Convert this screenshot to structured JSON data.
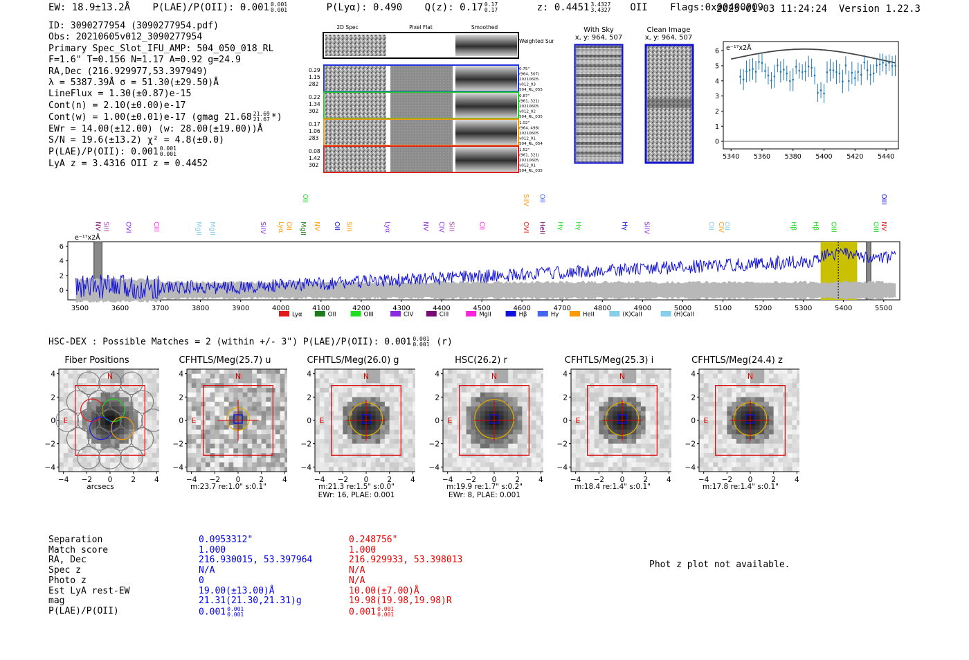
{
  "header": {
    "ew": "EW: 18.9±13.2Å",
    "plae": "P(LAE)/P(OII): 0.001",
    "plae_hi": "0.001",
    "plae_lo": "0.001",
    "plya": "P(Lyα): 0.490",
    "qz": "Q(z): 0.17",
    "qz_hi": "0.17",
    "qz_lo": "0.17",
    "z": "z: 0.4451",
    "z_hi": "3.4327",
    "z_lo": "3.4327",
    "z_line": "OII",
    "flags": "Flags:0x00400009",
    "timestamp": "2025-01-03 11:24:24",
    "version": "Version 1.22.3"
  },
  "detection": {
    "id": "ID: 3090277954 (3090277954.pdf)",
    "obs": "Obs: 20210605v012_3090277954",
    "primary": "Primary Spec_Slot_IFU_AMP: 504_050_018_RL",
    "fiber": "F=1.6\"  T=0.156  N=1.17  A=0.92  g=24.9",
    "radec": "RA,Dec (216.929977,53.397949)",
    "lambda": "λ = 5387.39Å   σ = 51.30(±29.50)Å",
    "lineflux": "LineFlux = 1.30(±0.87)e-15",
    "contn": "Cont(n) = 2.10(±0.00)e-17",
    "contw": "Cont(w) = 1.00(±0.01)e-17 (gmag 21.68",
    "contw_hi": "21.69",
    "contw_lo": "21.67",
    "contw_end": "*)",
    "ewr": "EWr = 14.00(±12.00) (w: 28.00(±19.00))Å",
    "sn": "S/N = 19.6(±13.2)  χ² = 4.8(±0.0)",
    "plae": "P(LAE)/P(OII): 0.001",
    "plae_hi": "0.001",
    "plae_lo": "0.001",
    "lyaz": "LyA z = 3.4316   OII z = 0.4452"
  },
  "panels": {
    "spec2d_headers": [
      "2D Spec",
      "Pixel Flat",
      "Smoothed"
    ],
    "weighted_sum": "Weighted Sum",
    "rows": [
      {
        "left": [
          "0.29",
          "1.15",
          "282"
        ],
        "right": [
          "0.75\"",
          "(964, 507)",
          "20210605",
          "v012_03",
          "504_RL_055"
        ],
        "color": "#2233dd"
      },
      {
        "left": [
          "0.22",
          "1.34",
          "302"
        ],
        "right": [
          "0.87\"",
          "(961, 321)",
          "20210605",
          "v012_02",
          "504_RL_035"
        ],
        "color": "#22cc33"
      },
      {
        "left": [
          "0.17",
          "1.06",
          "283"
        ],
        "right": [
          "1.02\"",
          "(964, 498)",
          "20210605",
          "v012_01",
          "504_RL_054"
        ],
        "color": "#ee9911"
      },
      {
        "left": [
          "0.08",
          "1.42",
          "302"
        ],
        "right": [
          "1.52\"",
          "(961, 321)",
          "20210605",
          "v012_01",
          "504_RL_035"
        ],
        "color": "#dd2222"
      }
    ],
    "with_sky": "With Sky",
    "with_sky_xy": "x, y: 964, 507",
    "clean": "Clean Image",
    "clean_xy": "x, y: 964, 507"
  },
  "zoom_plot": {
    "unit": "e⁻¹⁷x2Å",
    "yticks": [
      "0",
      "1",
      "2",
      "3",
      "4",
      "5",
      "6"
    ],
    "xticks": [
      "5340",
      "5360",
      "5380",
      "5400",
      "5420",
      "5440"
    ]
  },
  "full_spectrum": {
    "unit": "e⁻¹⁷x2Å",
    "yticks": [
      "0",
      "2",
      "4",
      "6"
    ],
    "xticks": [
      "3500",
      "3600",
      "3700",
      "3800",
      "3900",
      "4000",
      "4100",
      "4200",
      "4300",
      "4400",
      "4500",
      "4600",
      "4700",
      "4800",
      "4900",
      "5000",
      "5100",
      "5200",
      "5300",
      "5400",
      "5500"
    ],
    "legend": [
      {
        "label": "Lyα",
        "color": "#e31a1c"
      },
      {
        "label": "OII",
        "color": "#1b7a1b"
      },
      {
        "label": "OIII",
        "color": "#22dd22"
      },
      {
        "label": "CIV",
        "color": "#8a2be2"
      },
      {
        "label": "CIII",
        "color": "#7a0a7a"
      },
      {
        "label": "MgII",
        "color": "#ff22dd"
      },
      {
        "label": "Hβ",
        "color": "#1111dd"
      },
      {
        "label": "Hγ",
        "color": "#4466ee"
      },
      {
        "label": "HeII",
        "color": "#ff9900"
      },
      {
        "label": "(K)CaII",
        "color": "#87ceeb"
      },
      {
        "label": "(H)CaII",
        "color": "#87ceeb"
      }
    ],
    "line_labels": [
      {
        "t": "NV",
        "w": 3535,
        "c": "#7a0a7a",
        "row": 1
      },
      {
        "t": "SiII",
        "w": 3555,
        "c": "#aa44aa",
        "row": 1
      },
      {
        "t": "OVI",
        "w": 3610,
        "c": "#8a2be2",
        "row": 1
      },
      {
        "t": "CIII",
        "w": 3680,
        "c": "#ff22dd",
        "row": 1
      },
      {
        "t": "MgII",
        "w": 3785,
        "c": "#87ceeb",
        "row": 1
      },
      {
        "t": "MgII",
        "w": 3820,
        "c": "#87ceeb",
        "row": 1
      },
      {
        "t": "SiIV",
        "w": 3945,
        "c": "#8a2be2",
        "row": 1
      },
      {
        "t": "Lyα",
        "w": 3990,
        "c": "#ff9900",
        "row": 1
      },
      {
        "t": "OII",
        "w": 4010,
        "c": "#ff9900",
        "row": 1
      },
      {
        "t": "MgII",
        "w": 4045,
        "c": "#1b7a1b",
        "row": 1
      },
      {
        "t": "OII",
        "w": 4050,
        "c": "#22dd22",
        "row": 0
      },
      {
        "t": "NV",
        "w": 4080,
        "c": "#ff9900",
        "row": 1
      },
      {
        "t": "OII",
        "w": 4130,
        "c": "#1111dd",
        "row": 1
      },
      {
        "t": "SiII",
        "w": 4160,
        "c": "#ff9900",
        "row": 1
      },
      {
        "t": "Lyα",
        "w": 4255,
        "c": "#8a2be2",
        "row": 1
      },
      {
        "t": "NV",
        "w": 4350,
        "c": "#8a2be2",
        "row": 1
      },
      {
        "t": "CIV",
        "w": 4390,
        "c": "#8a2be2",
        "row": 1
      },
      {
        "t": "SiII",
        "w": 4415,
        "c": "#aa44aa",
        "row": 1
      },
      {
        "t": "CII",
        "w": 4490,
        "c": "#ff22dd",
        "row": 1
      },
      {
        "t": "OVI",
        "w": 4600,
        "c": "#e31a1c",
        "row": 1
      },
      {
        "t": "SiIV",
        "w": 4600,
        "c": "#ff9900",
        "row": 0
      },
      {
        "t": "OII",
        "w": 4640,
        "c": "#4466ee",
        "row": 0
      },
      {
        "t": "HeII",
        "w": 4640,
        "c": "#7a0a7a",
        "row": 1
      },
      {
        "t": "Hγ",
        "w": 4685,
        "c": "#22dd22",
        "row": 1
      },
      {
        "t": "Hγ",
        "w": 4730,
        "c": "#22dd22",
        "row": 1
      },
      {
        "t": "Hγ",
        "w": 4845,
        "c": "#1111dd",
        "row": 1
      },
      {
        "t": "SiIV",
        "w": 4900,
        "c": "#8a2be2",
        "row": 1
      },
      {
        "t": "OII",
        "w": 5060,
        "c": "#87ceeb",
        "row": 1
      },
      {
        "t": "CIV",
        "w": 5085,
        "c": "#ff9900",
        "row": 1
      },
      {
        "t": "OII",
        "w": 5100,
        "c": "#87ceeb",
        "row": 1
      },
      {
        "t": "Hβ",
        "w": 5265,
        "c": "#22dd22",
        "row": 1
      },
      {
        "t": "Hβ",
        "w": 5320,
        "c": "#22dd22",
        "row": 1
      },
      {
        "t": "OIII",
        "w": 5365,
        "c": "#22dd22",
        "row": 1
      },
      {
        "t": "OIII",
        "w": 5470,
        "c": "#22dd22",
        "row": 1
      },
      {
        "t": "OIII",
        "w": 5490,
        "c": "#1111dd",
        "row": 0
      },
      {
        "t": "NV",
        "w": 5490,
        "c": "#e31a1c",
        "row": 1
      }
    ]
  },
  "hsc": {
    "line": "HSC-DEX : Possible Matches = 2 (within +/- 3\")  P(LAE)/P(OII): 0.001",
    "hi": "0.001",
    "lo": "0.001",
    "band": "(r)"
  },
  "cutouts": [
    {
      "title": "Fiber Positions",
      "caption1": "arcsecs",
      "caption2": ""
    },
    {
      "title": "CFHTLS/Meg(25.7) u",
      "caption1": "m:23.7  re:1.0\"  s:0.1\"",
      "caption2": ""
    },
    {
      "title": "CFHTLS/Meg(26.0) g",
      "caption1": "m:21.3  re:1.5\"  s:0.0\"",
      "caption2": "EWr: 16, PLAE: 0.001"
    },
    {
      "title": "HSC(26.2) r",
      "caption1": "m:19.9  re:1.7\"  s:0.2\"",
      "caption2": "EWr: 8, PLAE: 0.001"
    },
    {
      "title": "CFHTLS/Meg(25.3) i",
      "caption1": "m:18.4  re:1.4\"  s:0.1\"",
      "caption2": ""
    },
    {
      "title": "CFHTLS/Meg(24.4) z",
      "caption1": "m:17.8  re:1.4\"  s:0.1\"",
      "caption2": ""
    }
  ],
  "cutout_axes": {
    "yticks": [
      "4",
      "2",
      "0",
      "−2",
      "−4"
    ],
    "xticks": [
      "−4",
      "−2",
      "0",
      "2",
      "4"
    ],
    "north": "N",
    "east": "E"
  },
  "table": {
    "labels": [
      "Separation",
      "Match score",
      "RA, Dec",
      "Spec z",
      "Photo z",
      "Est LyA rest-EW",
      "mag",
      "P(LAE)/P(OII)"
    ],
    "col1": [
      "0.0953312\"",
      "1.000",
      "216.930015, 53.397964",
      "N/A",
      "0",
      "19.00(±13.00)Å",
      "21.31(21.30,21.31)g",
      "0.001"
    ],
    "col2": [
      "0.248756\"",
      "1.000",
      "216.929933, 53.398013",
      "N/A",
      "N/A",
      "10.00(±7.00)Å",
      "19.98(19.98,19.98)R",
      "0.001"
    ],
    "frac_hi": "0.001",
    "frac_lo": "0.001",
    "col1_color": "#0000ee",
    "col2_color": "#ee0000"
  },
  "photz_note": "Phot z plot not available."
}
